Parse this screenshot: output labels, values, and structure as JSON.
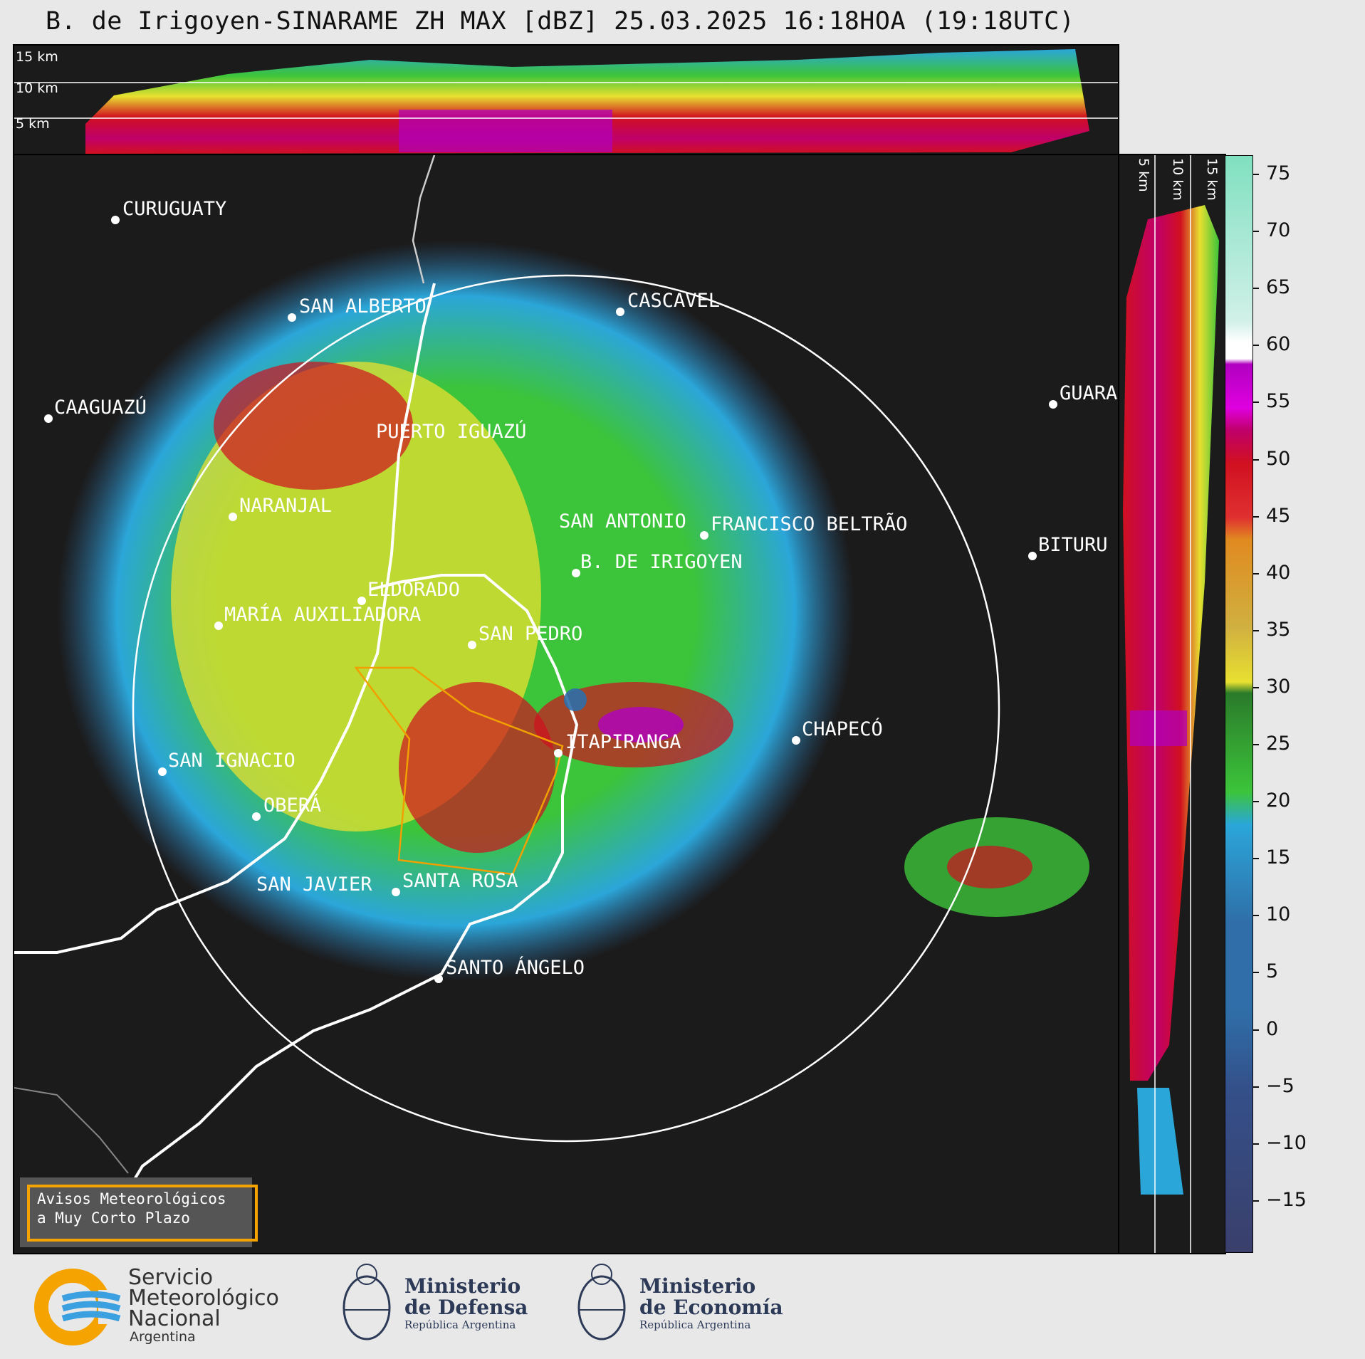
{
  "title": "B. de Irigoyen-SINARAME ZH MAX [dBZ] 25.03.2025 16:18HOA (19:18UTC)",
  "top_panel": {
    "altitudes": [
      "15 km",
      "10 km",
      "5 km"
    ]
  },
  "side_panel": {
    "altitudes": [
      "5 km",
      "10 km",
      "15 km"
    ]
  },
  "colorbar": {
    "ticks": [
      "75",
      "70",
      "65",
      "60",
      "55",
      "50",
      "45",
      "40",
      "35",
      "30",
      "25",
      "20",
      "15",
      "10",
      "5",
      "0",
      "−5",
      "−10",
      "−15"
    ],
    "colors": {
      "below_0": "#3a3f6b",
      "0_15": "#2f6ea8",
      "15_20": "#2ba6d9",
      "20_30": "#3cc43a",
      "30_40": "#e8e030",
      "40_45": "#e08a20",
      "45_50": "#d01020",
      "50_55": "#c0006a",
      "55_60": "#b000c0",
      "60_65": "#ffffff",
      "65_75": "#80e0c0"
    }
  },
  "cities": [
    {
      "name": "CURUGUATY"
    },
    {
      "name": "SAN ALBERTO"
    },
    {
      "name": "CASCAVEL"
    },
    {
      "name": "CAAGUAZÚ"
    },
    {
      "name": "GUARA"
    },
    {
      "name": "PUERTO IGUAZÚ"
    },
    {
      "name": "NARANJAL"
    },
    {
      "name": "SAN ANTONIO"
    },
    {
      "name": "FRANCISCO BELTRÃO"
    },
    {
      "name": "BITURU"
    },
    {
      "name": "B. DE IRIGOYEN"
    },
    {
      "name": "ELDORADO"
    },
    {
      "name": "MARÍA AUXILIADORA"
    },
    {
      "name": "SAN PEDRO"
    },
    {
      "name": "CHAPECÓ"
    },
    {
      "name": "ITAPIRANGA"
    },
    {
      "name": "SAN IGNACIO"
    },
    {
      "name": "OBERÁ"
    },
    {
      "name": "SAN JAVIER"
    },
    {
      "name": "SANTA ROSA"
    },
    {
      "name": "SANTO ÁNGELO"
    }
  ],
  "alert_box": {
    "line1": "Avisos Meteorológicos",
    "line2": "a Muy Corto Plazo"
  },
  "logos": {
    "smn": {
      "line1": "Servicio",
      "line2": "Meteorológico",
      "line3": "Nacional",
      "line4": "Argentina"
    },
    "defensa": {
      "line1": "Ministerio",
      "line2": "de Defensa",
      "line3": "República Argentina"
    },
    "economia": {
      "line1": "Ministerio",
      "line2": "de Economía",
      "line3": "República Argentina"
    }
  }
}
